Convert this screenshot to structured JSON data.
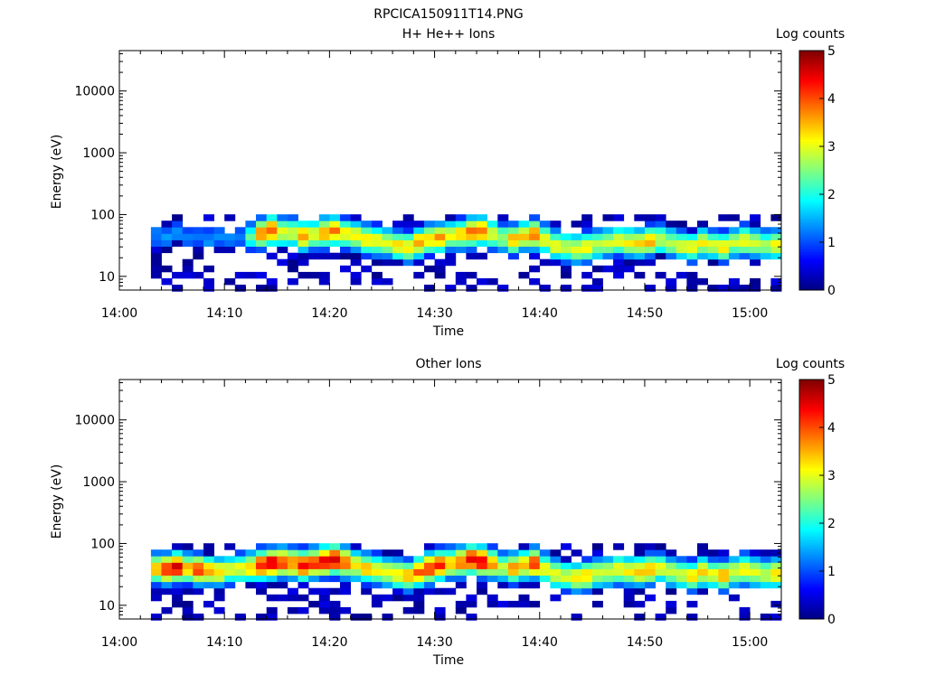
{
  "figure": {
    "title": "RPCICA150911T14.PNG"
  },
  "chart_data": [
    {
      "type": "heatmap",
      "title": "H+ He++ Ions",
      "xlabel": "Time",
      "ylabel": "Energy (eV)",
      "y_scale": "log",
      "ylim": [
        6,
        45000
      ],
      "xlim": [
        "14:00",
        "15:03"
      ],
      "x_ticks": [
        "14:00",
        "14:10",
        "14:20",
        "14:30",
        "14:40",
        "14:50",
        "15:00"
      ],
      "y_ticks": [
        "10",
        "100",
        "1000",
        "10000"
      ],
      "colorbar": {
        "label": "Log counts",
        "range": [
          0,
          5
        ],
        "ticks": [
          "0",
          "1",
          "2",
          "3",
          "4",
          "5"
        ],
        "colormap": "jet"
      },
      "energy_bins_eV": [
        6.5,
        8.3,
        10.5,
        13.3,
        16.9,
        21.4,
        27.2,
        34.5,
        43.8,
        55.6,
        70.6,
        89.6
      ],
      "time_bins_min": [
        3.5,
        4.5,
        5.5,
        6.5,
        7.5,
        8.5,
        9.5,
        10.5,
        11.5,
        12.5,
        13.5,
        14.5,
        15.5,
        16.5,
        17.5,
        18.5,
        19.5,
        20.5,
        21.5,
        22.5,
        23.5,
        24.5,
        25.5,
        26.5,
        27.5,
        28.5,
        29.5,
        30.5,
        31.5,
        32.5,
        33.5,
        34.5,
        35.5,
        36.5,
        37.5,
        38.5,
        39.5,
        40.5,
        41.5,
        42.5,
        43.5,
        44.5,
        45.5,
        46.5,
        47.5,
        48.5,
        49.5,
        50.5,
        51.5,
        52.5,
        53.5,
        54.5,
        55.5,
        56.5,
        57.5,
        58.5,
        59.5,
        60.5,
        61.5,
        62.5
      ],
      "peak_energy_eV": [
        45,
        40,
        50,
        42,
        45,
        40,
        42,
        40,
        42,
        45,
        50,
        55,
        52,
        50,
        45,
        48,
        52,
        55,
        50,
        45,
        40,
        38,
        35,
        32,
        30,
        35,
        40,
        42,
        45,
        48,
        52,
        55,
        48,
        42,
        40,
        45,
        48,
        40,
        32,
        30,
        28,
        30,
        33,
        35,
        38,
        36,
        35,
        38,
        40,
        35,
        32,
        30,
        35,
        32,
        30,
        35,
        38,
        35,
        32,
        33
      ],
      "peak_log_counts": [
        1.3,
        1.3,
        1.4,
        1.3,
        1.2,
        1.3,
        1.3,
        1.2,
        1.3,
        2.3,
        3.6,
        4.0,
        3.0,
        3.0,
        3.6,
        3.0,
        3.6,
        3.8,
        3.2,
        3.2,
        3.4,
        3.2,
        3.0,
        3.2,
        3.2,
        3.6,
        3.3,
        3.7,
        3.0,
        3.4,
        3.9,
        3.8,
        3.0,
        2.7,
        3.5,
        3.3,
        3.8,
        3.1,
        3.1,
        2.9,
        3.1,
        3.2,
        2.9,
        2.8,
        3.0,
        3.1,
        3.3,
        3.5,
        2.9,
        2.8,
        3.0,
        3.1,
        3.2,
        3.0,
        3.3,
        2.9,
        3.2,
        3.0,
        2.8,
        3.1
      ]
    },
    {
      "type": "heatmap",
      "title": "Other Ions",
      "xlabel": "Time",
      "ylabel": "Energy (eV)",
      "y_scale": "log",
      "ylim": [
        6,
        45000
      ],
      "xlim": [
        "14:00",
        "15:03"
      ],
      "x_ticks": [
        "14:00",
        "14:10",
        "14:20",
        "14:30",
        "14:40",
        "14:50",
        "15:00"
      ],
      "y_ticks": [
        "10",
        "100",
        "1000",
        "10000"
      ],
      "colorbar": {
        "label": "Log counts",
        "range": [
          0,
          5
        ],
        "ticks": [
          "0",
          "1",
          "2",
          "3",
          "4",
          "5"
        ],
        "colormap": "jet"
      },
      "energy_bins_eV": [
        6.5,
        8.3,
        10.5,
        13.3,
        16.9,
        21.4,
        27.2,
        34.5,
        43.8,
        55.6,
        70.6,
        89.6
      ],
      "time_bins_min": [
        3.5,
        4.5,
        5.5,
        6.5,
        7.5,
        8.5,
        9.5,
        10.5,
        11.5,
        12.5,
        13.5,
        14.5,
        15.5,
        16.5,
        17.5,
        18.5,
        19.5,
        20.5,
        21.5,
        22.5,
        23.5,
        24.5,
        25.5,
        26.5,
        27.5,
        28.5,
        29.5,
        30.5,
        31.5,
        32.5,
        33.5,
        34.5,
        35.5,
        36.5,
        37.5,
        38.5,
        39.5,
        40.5,
        41.5,
        42.5,
        43.5,
        44.5,
        45.5,
        46.5,
        47.5,
        48.5,
        49.5,
        50.5,
        51.5,
        52.5,
        53.5,
        54.5,
        55.5,
        56.5,
        57.5,
        58.5,
        59.5,
        60.5,
        61.5,
        62.5
      ],
      "peak_energy_eV": [
        40,
        38,
        42,
        40,
        38,
        36,
        35,
        38,
        40,
        42,
        45,
        48,
        50,
        48,
        45,
        48,
        52,
        55,
        50,
        45,
        40,
        38,
        35,
        32,
        30,
        35,
        40,
        45,
        48,
        50,
        55,
        52,
        48,
        42,
        40,
        45,
        48,
        40,
        32,
        30,
        28,
        30,
        33,
        35,
        38,
        36,
        35,
        38,
        40,
        35,
        32,
        30,
        35,
        32,
        30,
        35,
        38,
        35,
        32,
        33
      ],
      "peak_log_counts": [
        3.5,
        4.3,
        4.5,
        3.5,
        4.2,
        3.5,
        3.3,
        3.0,
        3.0,
        3.4,
        4.3,
        4.6,
        4.1,
        3.8,
        4.4,
        4.2,
        4.5,
        4.6,
        3.9,
        3.4,
        3.4,
        3.2,
        3.0,
        3.3,
        3.5,
        3.9,
        4.2,
        4.3,
        3.5,
        3.9,
        4.5,
        4.5,
        3.6,
        2.8,
        3.6,
        3.5,
        4.3,
        3.1,
        3.1,
        2.9,
        3.3,
        3.3,
        3.0,
        2.9,
        3.1,
        3.2,
        3.5,
        3.6,
        3.0,
        3.0,
        3.0,
        3.2,
        3.3,
        3.1,
        3.5,
        3.0,
        3.3,
        3.1,
        2.9,
        3.4
      ]
    }
  ]
}
